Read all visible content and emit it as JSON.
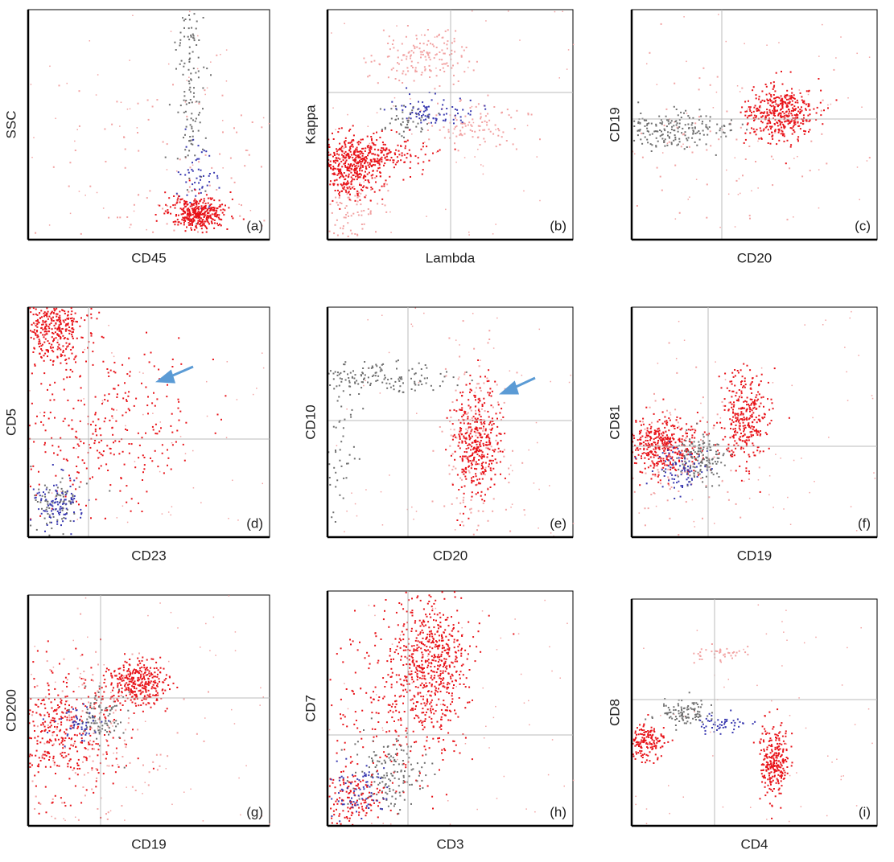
{
  "panels": [
    {
      "letter": "(a)",
      "x_label": "CD45",
      "y_label": "SSC"
    },
    {
      "letter": "(b)",
      "x_label": "Lambda",
      "y_label": "Kappa"
    },
    {
      "letter": "(c)",
      "x_label": "CD20",
      "y_label": "CD19"
    },
    {
      "letter": "(d)",
      "x_label": "CD23",
      "y_label": "CD5"
    },
    {
      "letter": "(e)",
      "x_label": "CD20",
      "y_label": "CD10"
    },
    {
      "letter": "(f)",
      "x_label": "CD19",
      "y_label": "CD81"
    },
    {
      "letter": "(g)",
      "x_label": "CD19",
      "y_label": "CD200"
    },
    {
      "letter": "(h)",
      "x_label": "CD3",
      "y_label": "CD7"
    },
    {
      "letter": "(i)",
      "x_label": "CD4",
      "y_label": "CD8"
    }
  ]
}
